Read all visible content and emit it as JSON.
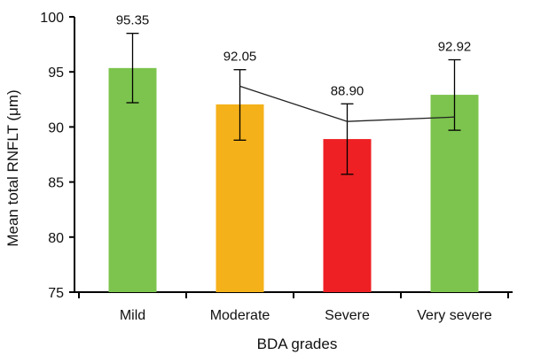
{
  "chart_data": {
    "type": "bar",
    "categories": [
      "Mild",
      "Moderate",
      "Severe",
      "Very severe"
    ],
    "values": [
      95.35,
      92.05,
      88.9,
      92.92
    ],
    "value_labels": [
      "95.35",
      "92.05",
      "88.90",
      "92.92"
    ],
    "error_bars": [
      {
        "low": 92.2,
        "high": 98.5
      },
      {
        "low": 88.8,
        "high": 95.2
      },
      {
        "low": 85.7,
        "high": 92.1
      },
      {
        "low": 89.7,
        "high": 96.1
      }
    ],
    "trend_line": {
      "x_categories": [
        "Moderate",
        "Severe",
        "Very severe"
      ],
      "y": [
        93.7,
        90.5,
        90.9
      ]
    },
    "bar_colors": [
      "#7cc44e",
      "#f5b11a",
      "#ee2024",
      "#7cc44e"
    ],
    "xlabel": "BDA grades",
    "ylabel": "Mean total RNFLT (μm)",
    "ylim": [
      75,
      100
    ],
    "yticks": [
      "75",
      "80",
      "85",
      "90",
      "95",
      "100"
    ],
    "grid": false,
    "legend": "none"
  }
}
